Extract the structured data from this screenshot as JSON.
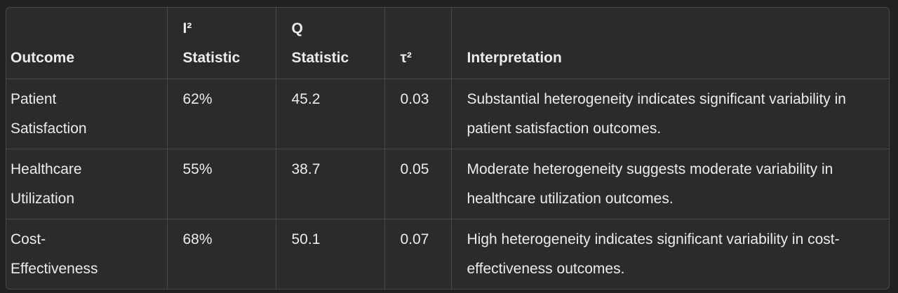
{
  "table": {
    "headers": [
      "Outcome",
      "I² Statistic",
      "Q Statistic",
      "τ²",
      "Interpretation"
    ],
    "rows": [
      [
        "Patient Satisfaction",
        "62%",
        "45.2",
        "0.03",
        "Substantial heterogeneity indicates significant variability in patient satisfaction outcomes."
      ],
      [
        "Healthcare Utilization",
        "55%",
        "38.7",
        "0.05",
        "Moderate heterogeneity suggests moderate variability in healthcare utilization outcomes."
      ],
      [
        "Cost-Effectiveness",
        "68%",
        "50.1",
        "0.07",
        "High heterogeneity indicates significant variability in cost-effectiveness outcomes."
      ]
    ]
  }
}
